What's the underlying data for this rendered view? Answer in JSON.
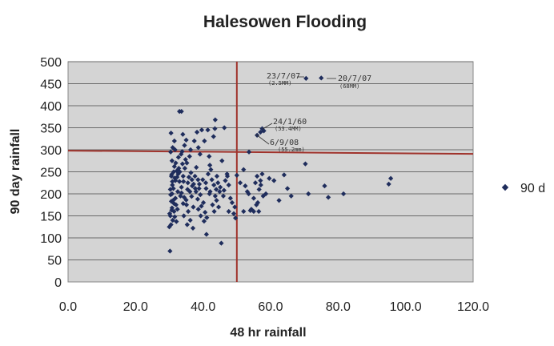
{
  "chart_data": {
    "type": "scatter",
    "title": "Halesowen Flooding",
    "xlabel": "48 hr rainfall",
    "ylabel": "90 day rainfall",
    "xlim": [
      0,
      120
    ],
    "ylim": [
      0,
      500
    ],
    "xticks": [
      "0.0",
      "20.0",
      "40.0",
      "60.0",
      "80.0",
      "100.0",
      "120.0"
    ],
    "yticks": [
      "0",
      "50",
      "100",
      "150",
      "200",
      "250",
      "300",
      "350",
      "400",
      "450",
      "500"
    ],
    "grid": "horizontal",
    "legend_position": "right",
    "colors": {
      "points": "#1f2d5c",
      "threshold_lines": "#a0332c",
      "plot_background": "#d4d4d4"
    },
    "thresholds": {
      "x": 50,
      "y": 298
    },
    "series": [
      {
        "name": "90 d",
        "points": [
          [
            30.2,
            70
          ],
          [
            30,
            125
          ],
          [
            30.5,
            130
          ],
          [
            31,
            140
          ],
          [
            30.3,
            150
          ],
          [
            31.4,
            160
          ],
          [
            30.8,
            168
          ],
          [
            32,
            175
          ],
          [
            30.6,
            183
          ],
          [
            31.8,
            190
          ],
          [
            30.4,
            198
          ],
          [
            32.5,
            205
          ],
          [
            31.2,
            212
          ],
          [
            30.9,
            220
          ],
          [
            33,
            228
          ],
          [
            31.6,
            236
          ],
          [
            30.7,
            244
          ],
          [
            32.2,
            252
          ],
          [
            31.5,
            262
          ],
          [
            30.8,
            275
          ],
          [
            33.5,
            290
          ],
          [
            31,
            305
          ],
          [
            31.5,
            320
          ],
          [
            30.5,
            338
          ],
          [
            33,
            387
          ],
          [
            33.6,
            387
          ],
          [
            34,
            335
          ],
          [
            35,
            322
          ],
          [
            34.5,
            310
          ],
          [
            33.8,
            296
          ],
          [
            36,
            285
          ],
          [
            35.2,
            270
          ],
          [
            34.6,
            258
          ],
          [
            36.4,
            248
          ],
          [
            35.8,
            238
          ],
          [
            34.2,
            228
          ],
          [
            36.8,
            218
          ],
          [
            35.4,
            210
          ],
          [
            33.6,
            202
          ],
          [
            36.6,
            194
          ],
          [
            35,
            186
          ],
          [
            34.1,
            178
          ],
          [
            37.1,
            170
          ],
          [
            35.6,
            160
          ],
          [
            34.3,
            150
          ],
          [
            36.2,
            140
          ],
          [
            35.3,
            130
          ],
          [
            37,
            122
          ],
          [
            38,
            260
          ],
          [
            37.6,
            240
          ],
          [
            38.5,
            232
          ],
          [
            37.2,
            222
          ],
          [
            38.8,
            212
          ],
          [
            37.9,
            205
          ],
          [
            39.2,
            198
          ],
          [
            38.4,
            188
          ],
          [
            40.1,
            180
          ],
          [
            39.5,
            172
          ],
          [
            38.6,
            165
          ],
          [
            40.6,
            158
          ],
          [
            39.3,
            150
          ],
          [
            41.1,
            146
          ],
          [
            40.3,
            138
          ],
          [
            39.1,
            290
          ],
          [
            38.6,
            305
          ],
          [
            40.4,
            320
          ],
          [
            39.6,
            345
          ],
          [
            38.2,
            340
          ],
          [
            41,
            108
          ],
          [
            37.4,
            320
          ],
          [
            40.8,
            225
          ],
          [
            41.5,
            245
          ],
          [
            42,
            265
          ],
          [
            41.8,
            285
          ],
          [
            42.6,
            232
          ],
          [
            43.2,
            220
          ],
          [
            42.1,
            205
          ],
          [
            43.6,
            195
          ],
          [
            42.8,
            175
          ],
          [
            44,
            185
          ],
          [
            44.6,
            170
          ],
          [
            43.3,
            160
          ],
          [
            42.3,
            255
          ],
          [
            44.1,
            240
          ],
          [
            45.1,
            215
          ],
          [
            44.9,
            205
          ],
          [
            46,
            195
          ],
          [
            45.6,
            275
          ],
          [
            43.1,
            330
          ],
          [
            43.5,
            348
          ],
          [
            43.6,
            368
          ],
          [
            46.3,
            350
          ],
          [
            41.4,
            345
          ],
          [
            45.4,
            88
          ],
          [
            46.6,
            230
          ],
          [
            47.2,
            240
          ],
          [
            47.6,
            220
          ],
          [
            48.1,
            190
          ],
          [
            48.6,
            180
          ],
          [
            49.4,
            170
          ],
          [
            49.1,
            155
          ],
          [
            49.6,
            145
          ],
          [
            47.6,
            160
          ],
          [
            31.8,
            230
          ],
          [
            32.6,
            245
          ],
          [
            33.6,
            215
          ],
          [
            32.4,
            165
          ],
          [
            31.4,
            178
          ],
          [
            33.3,
            195
          ],
          [
            30.6,
            240
          ],
          [
            30.3,
            210
          ],
          [
            30.8,
            200
          ],
          [
            31.1,
            185
          ],
          [
            32.8,
            258
          ],
          [
            33.9,
            268
          ],
          [
            34.8,
            278
          ],
          [
            36.3,
            300
          ],
          [
            35.1,
            175
          ],
          [
            34.4,
            192
          ],
          [
            36.1,
            205
          ],
          [
            30.1,
            155
          ],
          [
            30.7,
            163
          ],
          [
            31.6,
            148
          ],
          [
            32.1,
            137
          ],
          [
            30.9,
            228
          ],
          [
            32.3,
            238
          ],
          [
            33.1,
            250
          ],
          [
            34.1,
            240
          ],
          [
            31.3,
            250
          ],
          [
            35.5,
            225
          ],
          [
            36.7,
            232
          ],
          [
            37.7,
            212
          ],
          [
            38.9,
            222
          ],
          [
            39.9,
            232
          ],
          [
            40.9,
            212
          ],
          [
            41.9,
            200
          ],
          [
            43.9,
            210
          ],
          [
            44.4,
            225
          ],
          [
            46.2,
            208
          ],
          [
            47.1,
            245
          ],
          [
            31.7,
            300
          ],
          [
            32.7,
            283
          ],
          [
            30.4,
            295
          ],
          [
            31.9,
            270
          ],
          [
            52,
            160
          ],
          [
            54,
            162
          ],
          [
            54.3,
            165
          ],
          [
            55,
            160
          ],
          [
            52,
            255
          ],
          [
            53.5,
            200
          ],
          [
            55.5,
            225
          ],
          [
            56,
            240
          ],
          [
            56.5,
            160
          ],
          [
            56.2,
            180
          ],
          [
            57,
            230
          ],
          [
            57.5,
            245
          ],
          [
            57.8,
            195
          ],
          [
            57.1,
            220
          ],
          [
            58.6,
            200
          ],
          [
            59.6,
            235
          ],
          [
            61,
            230
          ],
          [
            50,
            242
          ],
          [
            51,
            225
          ],
          [
            52.5,
            218
          ],
          [
            53.1,
            205
          ],
          [
            55,
            190
          ],
          [
            55.8,
            175
          ],
          [
            56.6,
            210
          ],
          [
            56,
            333
          ],
          [
            57,
            340
          ],
          [
            58,
            343
          ],
          [
            57.5,
            348
          ],
          [
            70.5,
            462
          ],
          [
            75,
            463
          ],
          [
            70.3,
            268
          ],
          [
            71.2,
            200
          ],
          [
            76,
            218
          ],
          [
            77.1,
            192
          ],
          [
            81.6,
            200
          ],
          [
            95,
            222
          ],
          [
            95.6,
            235
          ],
          [
            64,
            243
          ],
          [
            65,
            212
          ],
          [
            66.1,
            195
          ],
          [
            62.5,
            185
          ],
          [
            53.6,
            295
          ]
        ]
      }
    ],
    "annotations": [
      {
        "line1": "23/7/07",
        "line2": "(2.5MM)"
      },
      {
        "line1": "20/7/07",
        "line2": "(68MM)"
      },
      {
        "line1": "24/1/60",
        "line2": "(53.4MM)"
      },
      {
        "line1": "6/9/08",
        "line2": "(55.2mm)"
      }
    ]
  }
}
